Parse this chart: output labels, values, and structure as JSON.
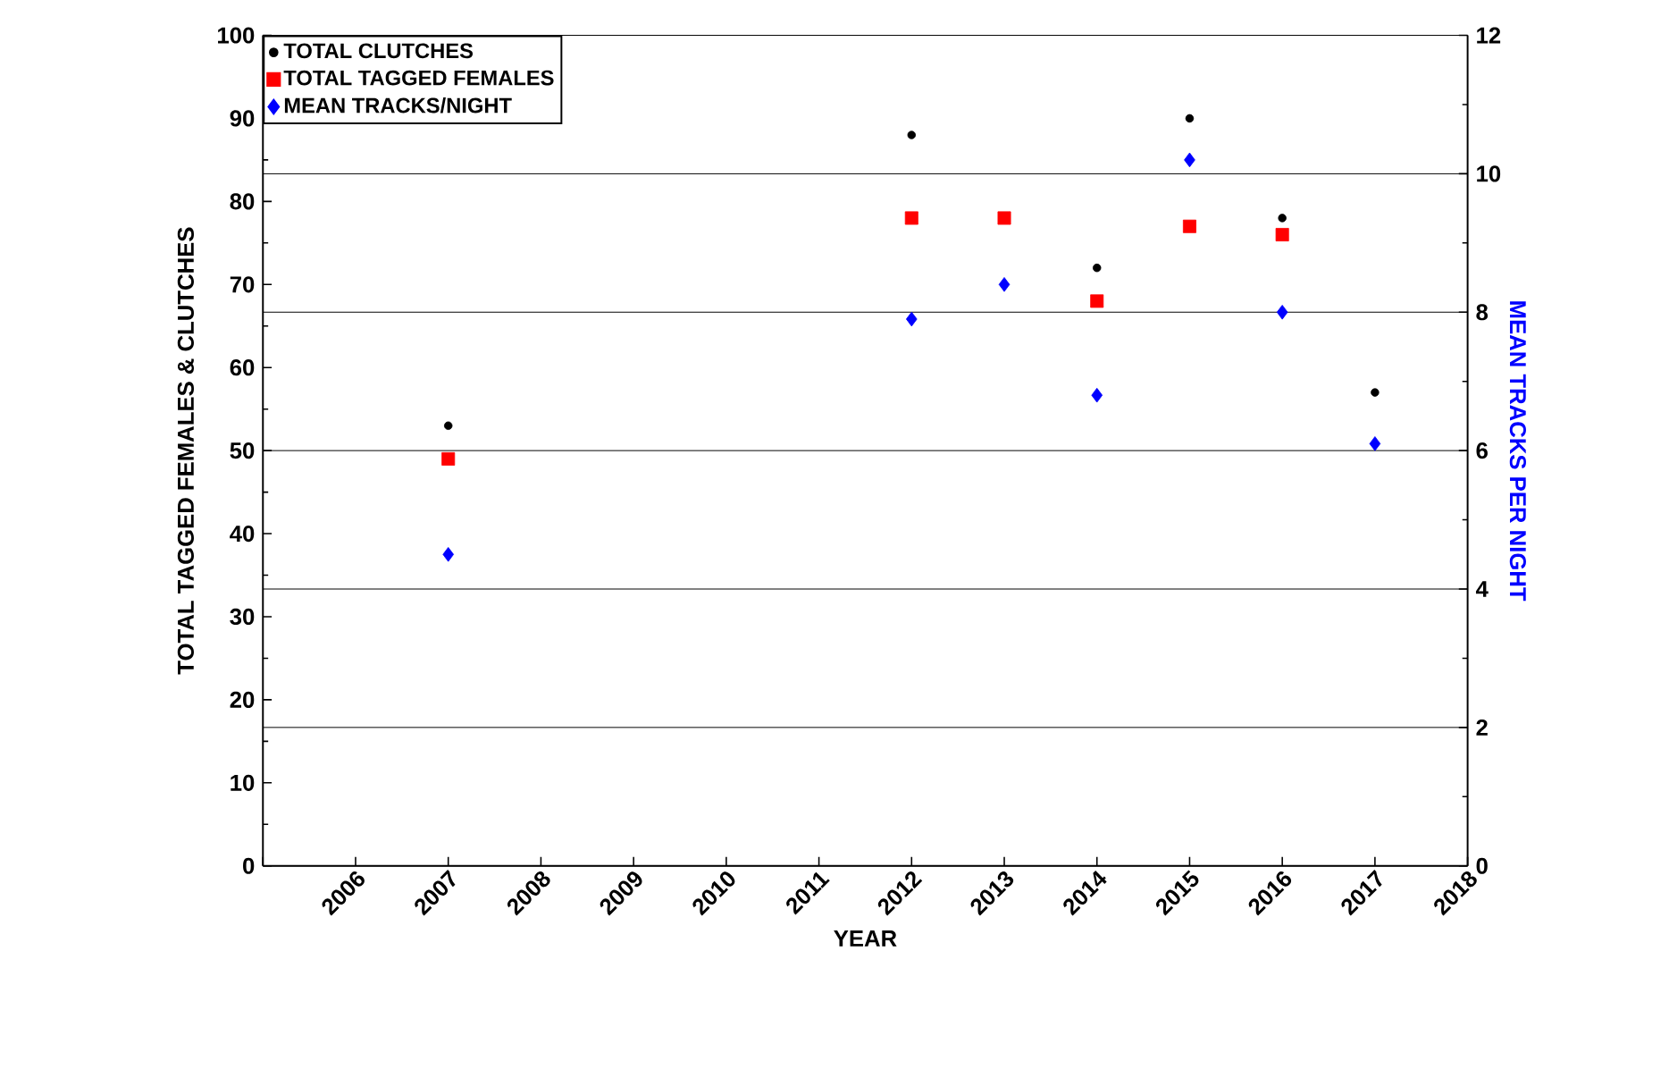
{
  "chart_data": {
    "type": "scatter",
    "xlabel": "YEAR",
    "ylabel": "TOTAL TAGGED FEMALES & CLUTCHES",
    "y2label": "MEAN TRACKS PER NIGHT",
    "x": [
      2007,
      2012,
      2013,
      2014,
      2015,
      2016,
      2017
    ],
    "series": [
      {
        "name": "TOTAL CLUTCHES",
        "color": "#000000",
        "marker": "circle",
        "values": [
          53,
          88,
          null,
          72,
          90,
          78,
          57
        ]
      },
      {
        "name": "TOTAL TAGGED FEMALES",
        "color": "#ff0000",
        "marker": "square",
        "values": [
          49,
          78,
          78,
          68,
          77,
          76,
          null
        ]
      },
      {
        "name": "MEAN TRACKS/NIGHT",
        "color": "#0000ff",
        "marker": "diamond",
        "axis": "y2",
        "values": [
          4.5,
          7.9,
          8.4,
          6.8,
          10.2,
          8.0,
          6.1
        ]
      }
    ],
    "xlim": [
      2005,
      2018
    ],
    "xticks": [
      {
        "value": 2005,
        "label": null
      },
      2006,
      2007,
      2008,
      2009,
      2010,
      2011,
      2012,
      2013,
      2014,
      2015,
      2016,
      2017,
      2018
    ],
    "ylim": [
      0,
      100
    ],
    "yticks": [
      0,
      10,
      20,
      30,
      40,
      50,
      60,
      70,
      80,
      90,
      100
    ],
    "y2lim": [
      0,
      12
    ],
    "y2ticks": [
      0,
      2,
      4,
      6,
      8,
      10,
      12
    ],
    "grid": "y2",
    "legend": "top left"
  }
}
